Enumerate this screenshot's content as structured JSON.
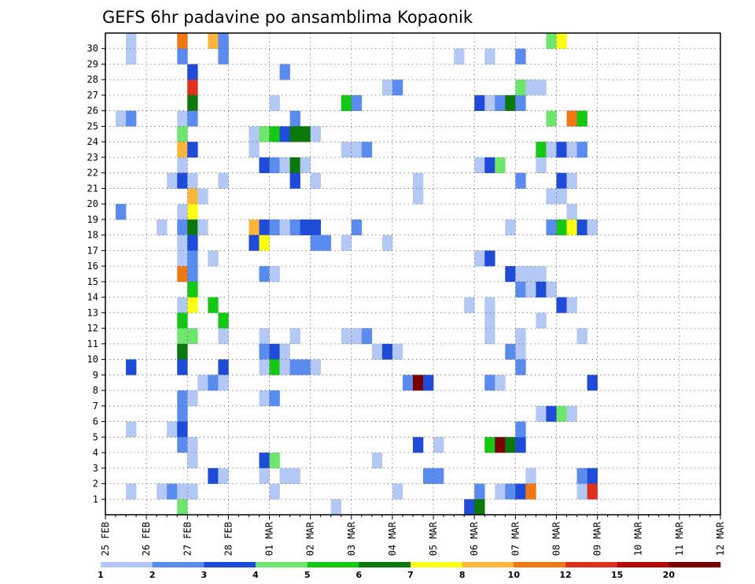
{
  "chart_data": {
    "type": "heatmap",
    "title": "GEFS 6hr padavine po ansamblima Kopaonik",
    "xlabel": "",
    "ylabel": "",
    "x_ticks": [
      "25 FEB",
      "26 FEB",
      "27 FEB",
      "28 FEB",
      "01 MAR",
      "02 MAR",
      "03 MAR",
      "04 MAR",
      "05 MAR",
      "06 MAR",
      "07 MAR",
      "08 MAR",
      "09 MAR",
      "10 MAR",
      "11 MAR",
      "12 MAR"
    ],
    "y_ticks": [
      "1",
      "2",
      "3",
      "4",
      "5",
      "6",
      "7",
      "8",
      "9",
      "10",
      "11",
      "12",
      "13",
      "14",
      "15",
      "16",
      "17",
      "18",
      "19",
      "20",
      "21",
      "22",
      "23",
      "24",
      "25",
      "26",
      "27",
      "28",
      "29",
      "30"
    ],
    "x_unit": "6-hour step from 25 FEB 00Z",
    "grid": true,
    "legend_placement": "bottom",
    "colorbar": {
      "ticks": [
        "1",
        "2",
        "3",
        "4",
        "5",
        "6",
        "7",
        "8",
        "10",
        "12",
        "15",
        "20"
      ],
      "colors": [
        "#b4c8f5",
        "#5a8cf0",
        "#1e4bd7",
        "#6ee66e",
        "#14c814",
        "#0a780a",
        "#ffff14",
        "#ffb43c",
        "#f07814",
        "#dc321e",
        "#b40a0a",
        "#780000"
      ]
    },
    "cells": [
      {
        "t": 2,
        "m": 29,
        "c": 0
      },
      {
        "t": 2,
        "m": 30,
        "c": 0
      },
      {
        "t": 1,
        "m": 25,
        "c": 0
      },
      {
        "t": 2,
        "m": 25,
        "c": 1
      },
      {
        "t": 1,
        "m": 19,
        "c": 1
      },
      {
        "t": 2,
        "m": 9,
        "c": 2
      },
      {
        "t": 2,
        "m": 5,
        "c": 0
      },
      {
        "t": 2,
        "m": 1,
        "c": 0
      },
      {
        "t": 7,
        "m": 30,
        "c": 8
      },
      {
        "t": 7,
        "m": 29,
        "c": 1
      },
      {
        "t": 8,
        "m": 28,
        "c": 2
      },
      {
        "t": 8,
        "m": 27,
        "c": 9
      },
      {
        "t": 8,
        "m": 26,
        "c": 5
      },
      {
        "t": 7,
        "m": 25,
        "c": 0
      },
      {
        "t": 8,
        "m": 25,
        "c": 1
      },
      {
        "t": 7,
        "m": 24,
        "c": 3
      },
      {
        "t": 7,
        "m": 23,
        "c": 7
      },
      {
        "t": 8,
        "m": 23,
        "c": 2
      },
      {
        "t": 7,
        "m": 22,
        "c": 0
      },
      {
        "t": 6,
        "m": 21,
        "c": 0
      },
      {
        "t": 7,
        "m": 21,
        "c": 2
      },
      {
        "t": 8,
        "m": 21,
        "c": 0
      },
      {
        "t": 8,
        "m": 20,
        "c": 7
      },
      {
        "t": 9,
        "m": 20,
        "c": 0
      },
      {
        "t": 7,
        "m": 19,
        "c": 0
      },
      {
        "t": 8,
        "m": 19,
        "c": 6
      },
      {
        "t": 5,
        "m": 18,
        "c": 0
      },
      {
        "t": 7,
        "m": 18,
        "c": 1
      },
      {
        "t": 8,
        "m": 18,
        "c": 5
      },
      {
        "t": 9,
        "m": 18,
        "c": 0
      },
      {
        "t": 7,
        "m": 17,
        "c": 0
      },
      {
        "t": 8,
        "m": 17,
        "c": 2
      },
      {
        "t": 7,
        "m": 16,
        "c": 0
      },
      {
        "t": 8,
        "m": 16,
        "c": 1
      },
      {
        "t": 7,
        "m": 15,
        "c": 8
      },
      {
        "t": 8,
        "m": 15,
        "c": 1
      },
      {
        "t": 8,
        "m": 14,
        "c": 4
      },
      {
        "t": 7,
        "m": 13,
        "c": 0
      },
      {
        "t": 8,
        "m": 13,
        "c": 6
      },
      {
        "t": 7,
        "m": 12,
        "c": 4
      },
      {
        "t": 7,
        "m": 11,
        "c": 3
      },
      {
        "t": 8,
        "m": 11,
        "c": 3
      },
      {
        "t": 7,
        "m": 10,
        "c": 5
      },
      {
        "t": 7,
        "m": 9,
        "c": 2
      },
      {
        "t": 7,
        "m": 7,
        "c": 1
      },
      {
        "t": 8,
        "m": 7,
        "c": 0
      },
      {
        "t": 7,
        "m": 6,
        "c": 1
      },
      {
        "t": 6,
        "m": 5,
        "c": 0
      },
      {
        "t": 7,
        "m": 5,
        "c": 2
      },
      {
        "t": 7,
        "m": 4,
        "c": 1
      },
      {
        "t": 8,
        "m": 4,
        "c": 0
      },
      {
        "t": 8,
        "m": 3,
        "c": 0
      },
      {
        "t": 5,
        "m": 1,
        "c": 0
      },
      {
        "t": 6,
        "m": 1,
        "c": 1
      },
      {
        "t": 7,
        "m": 1,
        "c": 0
      },
      {
        "t": 8,
        "m": 1,
        "c": 0
      },
      {
        "t": 7,
        "m": 0,
        "c": 3
      },
      {
        "t": 10,
        "m": 30,
        "c": 7
      },
      {
        "t": 11,
        "m": 30,
        "c": 1
      },
      {
        "t": 11,
        "m": 29,
        "c": 1
      },
      {
        "t": 11,
        "m": 21,
        "c": 0
      },
      {
        "t": 10,
        "m": 13,
        "c": 4
      },
      {
        "t": 11,
        "m": 12,
        "c": 4
      },
      {
        "t": 11,
        "m": 11,
        "c": 0
      },
      {
        "t": 11,
        "m": 9,
        "c": 2
      },
      {
        "t": 9,
        "m": 8,
        "c": 0
      },
      {
        "t": 10,
        "m": 8,
        "c": 1
      },
      {
        "t": 11,
        "m": 8,
        "c": 0
      },
      {
        "t": 10,
        "m": 2,
        "c": 2
      },
      {
        "t": 11,
        "m": 2,
        "c": 0
      },
      {
        "t": 10,
        "m": 16,
        "c": 0
      },
      {
        "t": 17,
        "m": 28,
        "c": 1
      },
      {
        "t": 16,
        "m": 26,
        "c": 0
      },
      {
        "t": 18,
        "m": 25,
        "c": 1
      },
      {
        "t": 14,
        "m": 24,
        "c": 0
      },
      {
        "t": 15,
        "m": 24,
        "c": 3
      },
      {
        "t": 16,
        "m": 24,
        "c": 4
      },
      {
        "t": 17,
        "m": 24,
        "c": 2
      },
      {
        "t": 18,
        "m": 24,
        "c": 5
      },
      {
        "t": 19,
        "m": 24,
        "c": 5
      },
      {
        "t": 20,
        "m": 24,
        "c": 0
      },
      {
        "t": 15,
        "m": 22,
        "c": 2
      },
      {
        "t": 16,
        "m": 22,
        "c": 1
      },
      {
        "t": 17,
        "m": 22,
        "c": 0
      },
      {
        "t": 18,
        "m": 22,
        "c": 5
      },
      {
        "t": 19,
        "m": 22,
        "c": 0
      },
      {
        "t": 18,
        "m": 21,
        "c": 2
      },
      {
        "t": 20,
        "m": 21,
        "c": 0
      },
      {
        "t": 14,
        "m": 18,
        "c": 7
      },
      {
        "t": 15,
        "m": 18,
        "c": 2
      },
      {
        "t": 16,
        "m": 18,
        "c": 1
      },
      {
        "t": 17,
        "m": 18,
        "c": 0
      },
      {
        "t": 18,
        "m": 18,
        "c": 1
      },
      {
        "t": 19,
        "m": 18,
        "c": 2
      },
      {
        "t": 20,
        "m": 18,
        "c": 2
      },
      {
        "t": 14,
        "m": 17,
        "c": 2
      },
      {
        "t": 15,
        "m": 17,
        "c": 6
      },
      {
        "t": 20,
        "m": 17,
        "c": 1
      },
      {
        "t": 21,
        "m": 17,
        "c": 1
      },
      {
        "t": 15,
        "m": 15,
        "c": 1
      },
      {
        "t": 16,
        "m": 15,
        "c": 0
      },
      {
        "t": 15,
        "m": 11,
        "c": 0
      },
      {
        "t": 15,
        "m": 10,
        "c": 1
      },
      {
        "t": 16,
        "m": 10,
        "c": 2
      },
      {
        "t": 17,
        "m": 10,
        "c": 0
      },
      {
        "t": 15,
        "m": 9,
        "c": 0
      },
      {
        "t": 16,
        "m": 9,
        "c": 4
      },
      {
        "t": 17,
        "m": 9,
        "c": 0
      },
      {
        "t": 15,
        "m": 7,
        "c": 0
      },
      {
        "t": 16,
        "m": 7,
        "c": 1
      },
      {
        "t": 15,
        "m": 3,
        "c": 2
      },
      {
        "t": 16,
        "m": 3,
        "c": 3
      },
      {
        "t": 15,
        "m": 2,
        "c": 0
      },
      {
        "t": 17,
        "m": 2,
        "c": 0
      },
      {
        "t": 18,
        "m": 2,
        "c": 0
      },
      {
        "t": 16,
        "m": 1,
        "c": 0
      },
      {
        "t": 18,
        "m": 11,
        "c": 0
      },
      {
        "t": 18,
        "m": 9,
        "c": 1
      },
      {
        "t": 19,
        "m": 9,
        "c": 1
      },
      {
        "t": 20,
        "m": 9,
        "c": 0
      },
      {
        "t": 14,
        "m": 23,
        "c": 0
      },
      {
        "t": 22,
        "m": 0,
        "c": 0
      },
      {
        "t": 23,
        "m": 17,
        "c": 0
      },
      {
        "t": 24,
        "m": 11,
        "c": 0
      },
      {
        "t": 25,
        "m": 11,
        "c": 1
      },
      {
        "t": 26,
        "m": 3,
        "c": 0
      },
      {
        "t": 23,
        "m": 26,
        "c": 4
      },
      {
        "t": 24,
        "m": 26,
        "c": 1
      },
      {
        "t": 23,
        "m": 23,
        "c": 0
      },
      {
        "t": 24,
        "m": 23,
        "c": 0
      },
      {
        "t": 25,
        "m": 23,
        "c": 1
      },
      {
        "t": 24,
        "m": 18,
        "c": 1
      },
      {
        "t": 26,
        "m": 10,
        "c": 0
      },
      {
        "t": 27,
        "m": 10,
        "c": 2
      },
      {
        "t": 28,
        "m": 10,
        "c": 0
      },
      {
        "t": 23,
        "m": 11,
        "c": 0
      },
      {
        "t": 27,
        "m": 27,
        "c": 0
      },
      {
        "t": 28,
        "m": 27,
        "c": 1
      },
      {
        "t": 27,
        "m": 17,
        "c": 0
      },
      {
        "t": 30,
        "m": 21,
        "c": 0
      },
      {
        "t": 30,
        "m": 20,
        "c": 0
      },
      {
        "t": 29,
        "m": 8,
        "c": 1
      },
      {
        "t": 30,
        "m": 8,
        "c": 11
      },
      {
        "t": 31,
        "m": 8,
        "c": 2
      },
      {
        "t": 30,
        "m": 4,
        "c": 2
      },
      {
        "t": 32,
        "m": 4,
        "c": 0
      },
      {
        "t": 31,
        "m": 2,
        "c": 1
      },
      {
        "t": 32,
        "m": 2,
        "c": 1
      },
      {
        "t": 28,
        "m": 1,
        "c": 0
      },
      {
        "t": 34,
        "m": 29,
        "c": 0
      },
      {
        "t": 37,
        "m": 29,
        "c": 0
      },
      {
        "t": 40,
        "m": 29,
        "c": 1
      },
      {
        "t": 36,
        "m": 26,
        "c": 2
      },
      {
        "t": 37,
        "m": 26,
        "c": 0
      },
      {
        "t": 38,
        "m": 26,
        "c": 1
      },
      {
        "t": 39,
        "m": 26,
        "c": 5
      },
      {
        "t": 40,
        "m": 26,
        "c": 1
      },
      {
        "t": 40,
        "m": 27,
        "c": 3
      },
      {
        "t": 41,
        "m": 27,
        "c": 0
      },
      {
        "t": 42,
        "m": 27,
        "c": 0
      },
      {
        "t": 36,
        "m": 22,
        "c": 0
      },
      {
        "t": 37,
        "m": 22,
        "c": 2
      },
      {
        "t": 38,
        "m": 22,
        "c": 3
      },
      {
        "t": 40,
        "m": 21,
        "c": 1
      },
      {
        "t": 39,
        "m": 18,
        "c": 0
      },
      {
        "t": 36,
        "m": 16,
        "c": 0
      },
      {
        "t": 37,
        "m": 16,
        "c": 2
      },
      {
        "t": 39,
        "m": 15,
        "c": 2
      },
      {
        "t": 40,
        "m": 15,
        "c": 0
      },
      {
        "t": 41,
        "m": 15,
        "c": 0
      },
      {
        "t": 42,
        "m": 15,
        "c": 0
      },
      {
        "t": 40,
        "m": 14,
        "c": 1
      },
      {
        "t": 41,
        "m": 14,
        "c": 0
      },
      {
        "t": 35,
        "m": 13,
        "c": 0
      },
      {
        "t": 37,
        "m": 13,
        "c": 0
      },
      {
        "t": 37,
        "m": 12,
        "c": 0
      },
      {
        "t": 37,
        "m": 11,
        "c": 0
      },
      {
        "t": 40,
        "m": 11,
        "c": 0
      },
      {
        "t": 39,
        "m": 10,
        "c": 1
      },
      {
        "t": 40,
        "m": 10,
        "c": 0
      },
      {
        "t": 40,
        "m": 9,
        "c": 1
      },
      {
        "t": 37,
        "m": 8,
        "c": 1
      },
      {
        "t": 38,
        "m": 8,
        "c": 0
      },
      {
        "t": 37,
        "m": 4,
        "c": 4
      },
      {
        "t": 38,
        "m": 4,
        "c": 11
      },
      {
        "t": 39,
        "m": 4,
        "c": 5
      },
      {
        "t": 40,
        "m": 4,
        "c": 2
      },
      {
        "t": 40,
        "m": 5,
        "c": 1
      },
      {
        "t": 41,
        "m": 2,
        "c": 0
      },
      {
        "t": 36,
        "m": 1,
        "c": 1
      },
      {
        "t": 38,
        "m": 1,
        "c": 0
      },
      {
        "t": 39,
        "m": 1,
        "c": 1
      },
      {
        "t": 40,
        "m": 1,
        "c": 2
      },
      {
        "t": 41,
        "m": 1,
        "c": 8
      },
      {
        "t": 35,
        "m": 0,
        "c": 2
      },
      {
        "t": 36,
        "m": 0,
        "c": 5
      },
      {
        "t": 43,
        "m": 30,
        "c": 3
      },
      {
        "t": 44,
        "m": 30,
        "c": 6
      },
      {
        "t": 43,
        "m": 25,
        "c": 3
      },
      {
        "t": 45,
        "m": 25,
        "c": 8
      },
      {
        "t": 46,
        "m": 25,
        "c": 4
      },
      {
        "t": 42,
        "m": 23,
        "c": 4
      },
      {
        "t": 43,
        "m": 23,
        "c": 0
      },
      {
        "t": 44,
        "m": 23,
        "c": 2
      },
      {
        "t": 45,
        "m": 23,
        "c": 0
      },
      {
        "t": 46,
        "m": 23,
        "c": 1
      },
      {
        "t": 42,
        "m": 22,
        "c": 0
      },
      {
        "t": 44,
        "m": 21,
        "c": 2
      },
      {
        "t": 45,
        "m": 21,
        "c": 0
      },
      {
        "t": 43,
        "m": 20,
        "c": 0
      },
      {
        "t": 44,
        "m": 20,
        "c": 0
      },
      {
        "t": 45,
        "m": 19,
        "c": 0
      },
      {
        "t": 43,
        "m": 18,
        "c": 1
      },
      {
        "t": 44,
        "m": 18,
        "c": 4
      },
      {
        "t": 45,
        "m": 18,
        "c": 6
      },
      {
        "t": 46,
        "m": 18,
        "c": 2
      },
      {
        "t": 47,
        "m": 18,
        "c": 0
      },
      {
        "t": 42,
        "m": 14,
        "c": 2
      },
      {
        "t": 44,
        "m": 13,
        "c": 2
      },
      {
        "t": 45,
        "m": 13,
        "c": 0
      },
      {
        "t": 42,
        "m": 12,
        "c": 0
      },
      {
        "t": 46,
        "m": 11,
        "c": 0
      },
      {
        "t": 42,
        "m": 6,
        "c": 0
      },
      {
        "t": 43,
        "m": 6,
        "c": 2
      },
      {
        "t": 44,
        "m": 6,
        "c": 3
      },
      {
        "t": 45,
        "m": 6,
        "c": 0
      },
      {
        "t": 47,
        "m": 8,
        "c": 2
      },
      {
        "t": 46,
        "m": 2,
        "c": 1
      },
      {
        "t": 47,
        "m": 2,
        "c": 2
      },
      {
        "t": 46,
        "m": 1,
        "c": 0
      },
      {
        "t": 47,
        "m": 1,
        "c": 9
      },
      {
        "t": 43,
        "m": 14,
        "c": 0
      }
    ]
  }
}
